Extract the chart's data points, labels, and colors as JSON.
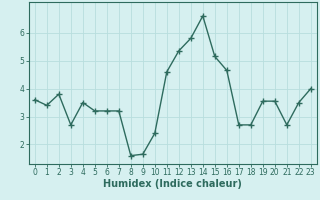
{
  "x": [
    0,
    1,
    2,
    3,
    4,
    5,
    6,
    7,
    8,
    9,
    10,
    11,
    12,
    13,
    14,
    15,
    16,
    17,
    18,
    19,
    20,
    21,
    22,
    23
  ],
  "y": [
    3.6,
    3.4,
    3.8,
    2.7,
    3.5,
    3.2,
    3.2,
    3.2,
    1.6,
    1.65,
    2.4,
    4.6,
    5.35,
    5.8,
    6.6,
    5.15,
    4.65,
    2.7,
    2.7,
    3.55,
    3.55,
    2.7,
    3.5,
    4.0
  ],
  "xlabel": "Humidex (Indice chaleur)",
  "line_color": "#2e6b5e",
  "marker": "+",
  "marker_size": 4,
  "bg_color": "#d6f0f0",
  "grid_color": "#b8dede",
  "axis_color": "#2e6b5e",
  "ylim": [
    1.3,
    7.1
  ],
  "xlim": [
    -0.5,
    23.5
  ],
  "yticks": [
    2,
    3,
    4,
    5,
    6
  ],
  "xticks": [
    0,
    1,
    2,
    3,
    4,
    5,
    6,
    7,
    8,
    9,
    10,
    11,
    12,
    13,
    14,
    15,
    16,
    17,
    18,
    19,
    20,
    21,
    22,
    23
  ],
  "tick_fontsize": 5.5,
  "xlabel_fontsize": 7,
  "linewidth": 1.0
}
